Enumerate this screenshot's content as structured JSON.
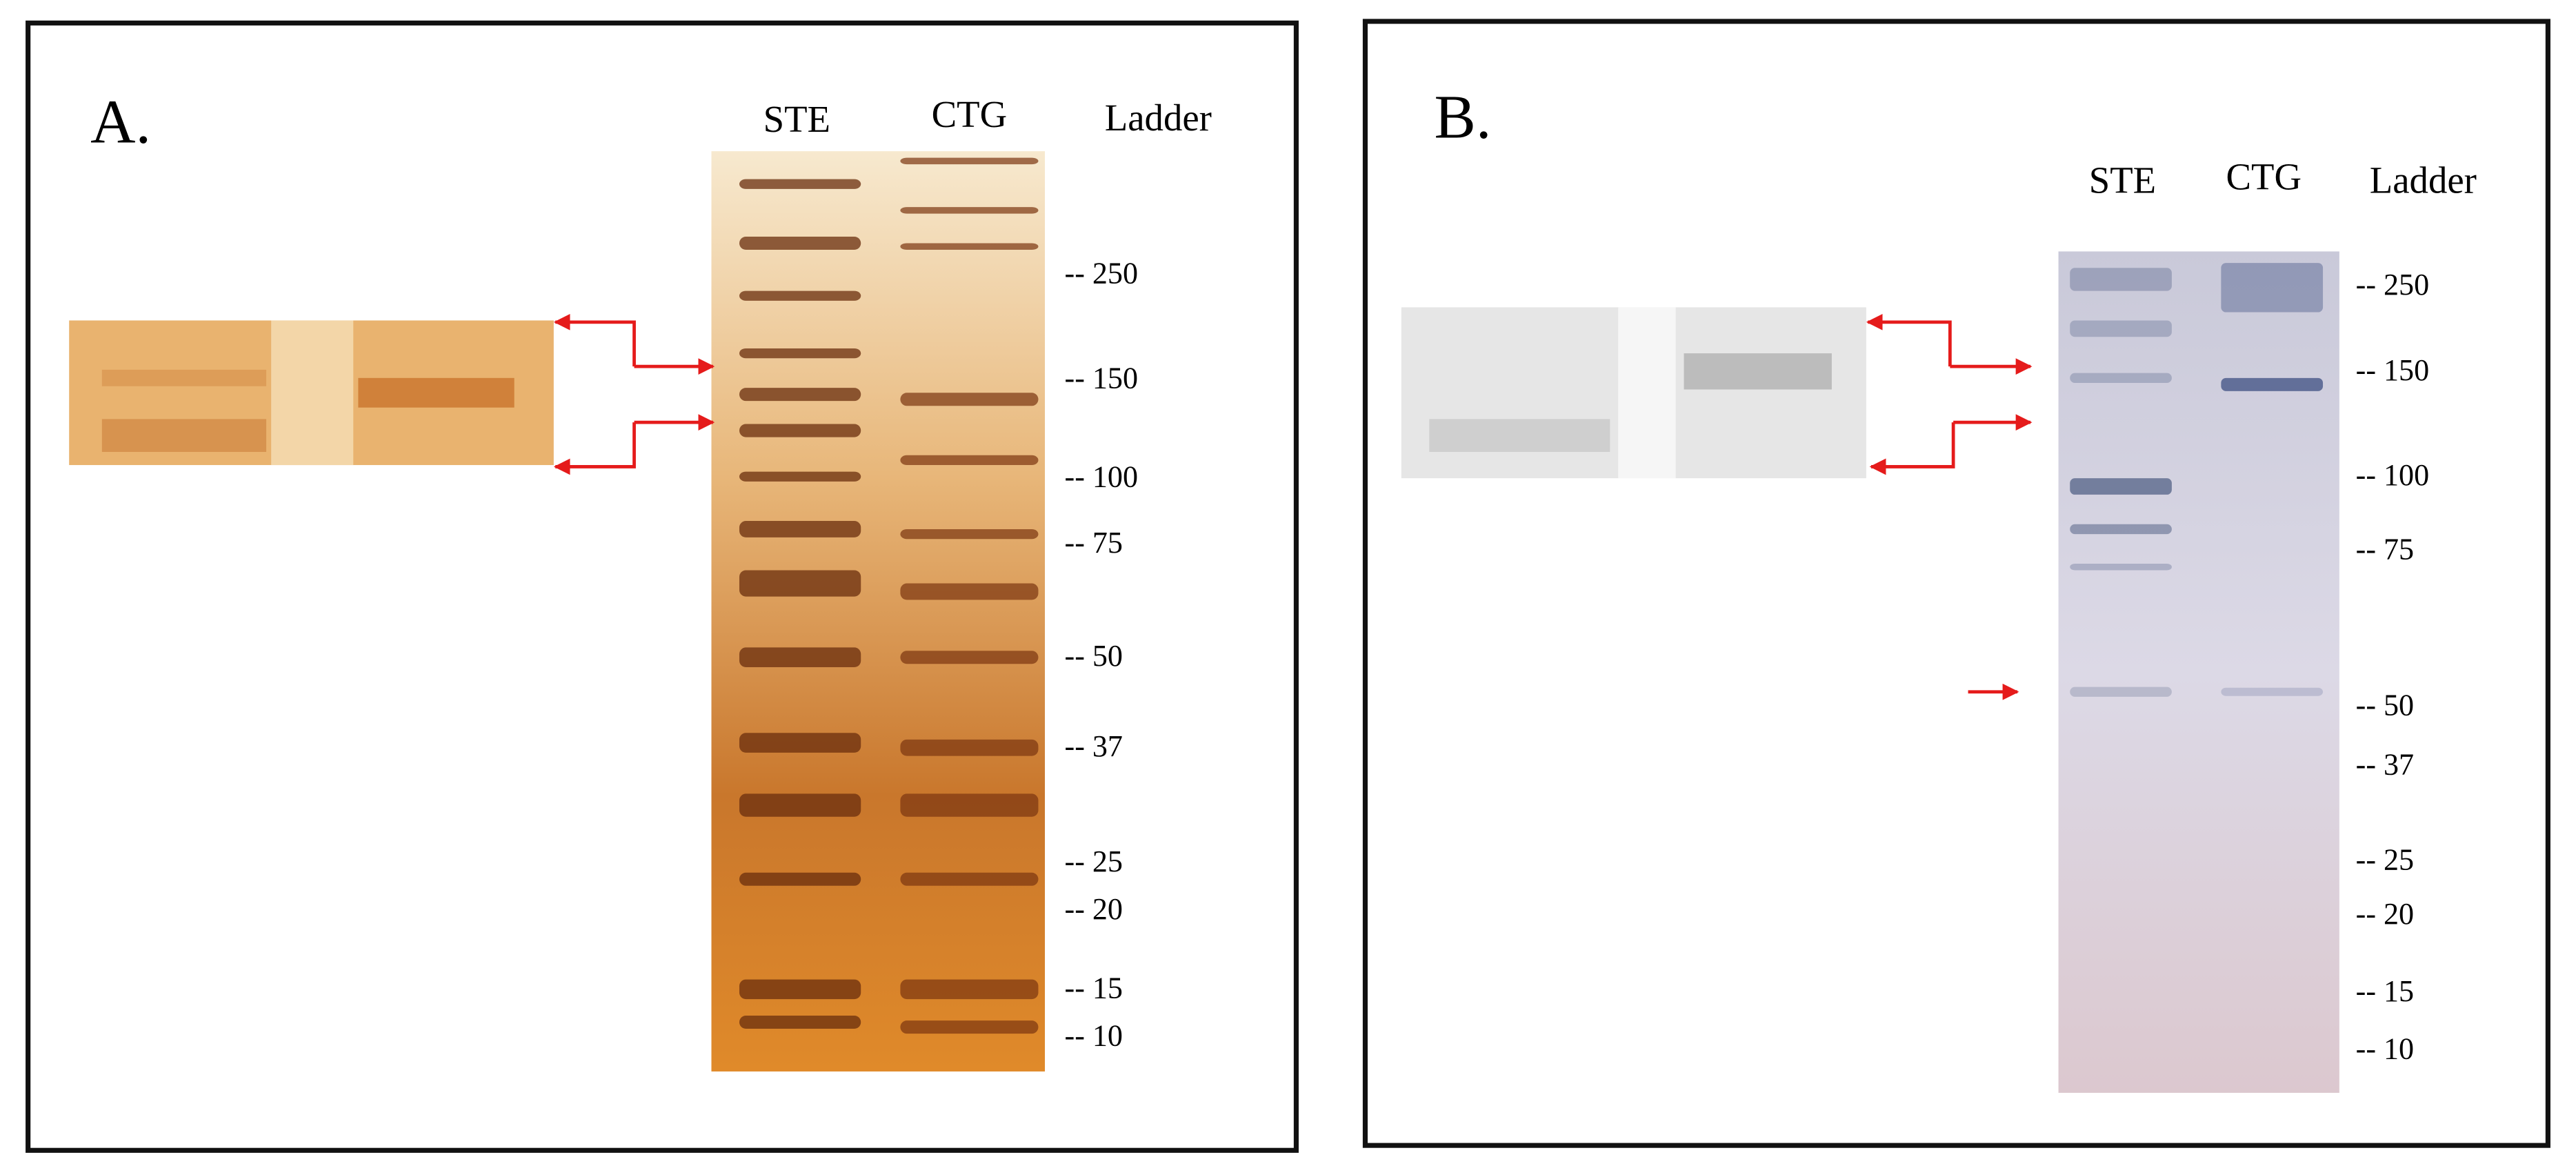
{
  "panels": [
    {
      "label": "A.",
      "lanes": [
        "STE",
        "CTG"
      ],
      "ladder_title": "Ladder",
      "ladder": [
        "-- 250",
        "-- 150",
        "-- 100",
        "-- 75",
        "-- 50",
        "-- 37",
        "-- 25",
        "-- 20",
        "-- 15",
        "-- 10"
      ]
    },
    {
      "label": "B.",
      "lanes": [
        "STE",
        "CTG"
      ],
      "ladder_title": "Ladder",
      "ladder": [
        "-- 250",
        "-- 150",
        "-- 100",
        "-- 75",
        "-- 50",
        "-- 37",
        "-- 25",
        "-- 20",
        "-- 15",
        "-- 10"
      ]
    }
  ]
}
